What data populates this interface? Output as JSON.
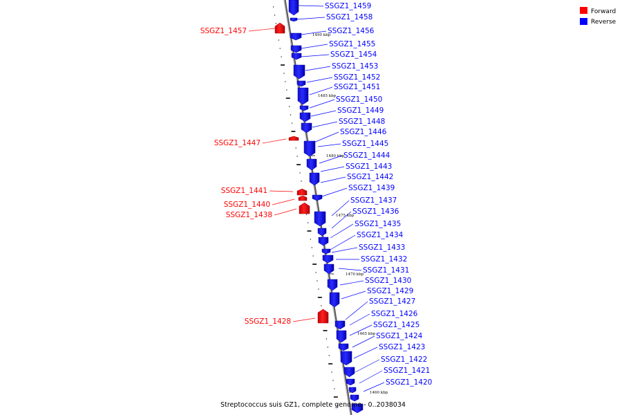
{
  "legend": [
    {
      "label": "Forward",
      "color": "#ff0000"
    },
    {
      "label": "Reverse",
      "color": "#0000ff"
    }
  ],
  "caption": "Streptococcus suis GZ1, complete genome - 0..2038034",
  "colors": {
    "forward": "#ff0000",
    "reverse": "#0000ff",
    "backbone": "#808080"
  },
  "scale_ticks": [
    "1490 kbp",
    "1485 kbp",
    "1480 kbp",
    "1475 kbp",
    "1470 kbp",
    "1465 kbp",
    "1460 kbp"
  ],
  "forward_genes": [
    "SSGZ1_1457",
    "SSGZ1_1447",
    "SSGZ1_1441",
    "SSGZ1_1440",
    "SSGZ1_1438",
    "SSGZ1_1428"
  ],
  "reverse_genes": [
    "SSGZ1_1459",
    "SSGZ1_1458",
    "SSGZ1_1456",
    "SSGZ1_1455",
    "SSGZ1_1454",
    "SSGZ1_1453",
    "SSGZ1_1452",
    "SSGZ1_1451",
    "SSGZ1_1450",
    "SSGZ1_1449",
    "SSGZ1_1448",
    "SSGZ1_1446",
    "SSGZ1_1445",
    "SSGZ1_1444",
    "SSGZ1_1443",
    "SSGZ1_1442",
    "SSGZ1_1439",
    "SSGZ1_1437",
    "SSGZ1_1436",
    "SSGZ1_1435",
    "SSGZ1_1434",
    "SSGZ1_1433",
    "SSGZ1_1432",
    "SSGZ1_1431",
    "SSGZ1_1430",
    "SSGZ1_1429",
    "SSGZ1_1427",
    "SSGZ1_1426",
    "SSGZ1_1425",
    "SSGZ1_1424",
    "SSGZ1_1423",
    "SSGZ1_1422",
    "SSGZ1_1421",
    "SSGZ1_1420"
  ]
}
